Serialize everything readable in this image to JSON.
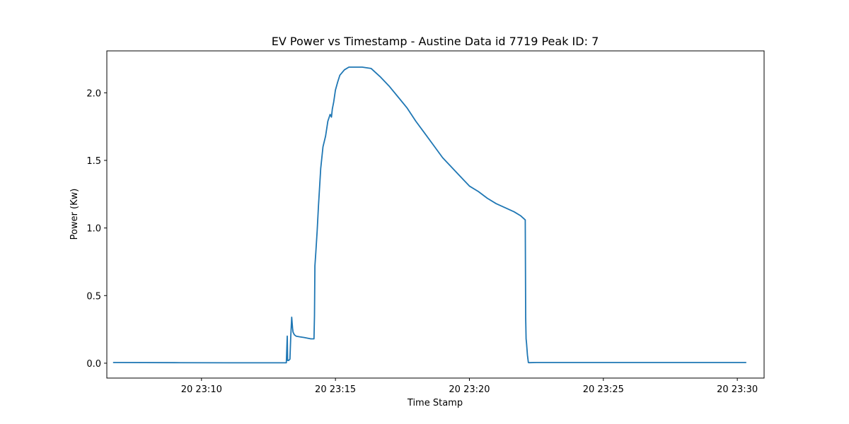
{
  "chart_data": {
    "type": "line",
    "title": "EV Power vs Timestamp - Austine Data id 7719 Peak ID: 7",
    "xlabel": "Time Stamp",
    "ylabel": "Power (Kw)",
    "xlim": [
      "2018-08-20 23:06:28",
      "2018-08-20 23:31:00"
    ],
    "ylim": [
      -0.11,
      2.31
    ],
    "x_ticks": [
      {
        "label": "20 23:10",
        "value": "2018-08-20 23:10:00"
      },
      {
        "label": "20 23:15",
        "value": "2018-08-20 23:15:00"
      },
      {
        "label": "20 23:20",
        "value": "2018-08-20 23:20:00"
      },
      {
        "label": "20 23:25",
        "value": "2018-08-20 23:25:00"
      },
      {
        "label": "20 23:30",
        "value": "2018-08-20 23:30:00"
      }
    ],
    "y_ticks": [
      {
        "label": "0.0",
        "value": 0.0
      },
      {
        "label": "0.5",
        "value": 0.5
      },
      {
        "label": "1.0",
        "value": 1.0
      },
      {
        "label": "1.5",
        "value": 1.5
      },
      {
        "label": "2.0",
        "value": 2.0
      }
    ],
    "grid": false,
    "line_color": "#1f77b4",
    "series": [
      {
        "x": [
          "2018-08-20 23:06:42",
          "2018-08-20 23:09:00",
          "2018-08-20 23:11:00",
          "2018-08-20 23:13:10",
          "2018-08-20 23:13:12",
          "2018-08-20 23:13:13",
          "2018-08-20 23:13:14",
          "2018-08-20 23:13:15",
          "2018-08-20 23:13:18",
          "2018-08-20 23:13:20",
          "2018-08-20 23:13:22",
          "2018-08-20 23:13:23",
          "2018-08-20 23:13:24",
          "2018-08-20 23:13:25",
          "2018-08-20 23:13:28",
          "2018-08-20 23:13:32",
          "2018-08-20 23:13:40",
          "2018-08-20 23:13:50",
          "2018-08-20 23:14:05",
          "2018-08-20 23:14:12",
          "2018-08-20 23:14:13",
          "2018-08-20 23:14:14",
          "2018-08-20 23:14:16",
          "2018-08-20 23:14:19",
          "2018-08-20 23:14:22",
          "2018-08-20 23:14:27",
          "2018-08-20 23:14:32",
          "2018-08-20 23:14:38",
          "2018-08-20 23:14:43",
          "2018-08-20 23:14:48",
          "2018-08-20 23:14:51",
          "2018-08-20 23:14:52",
          "2018-08-20 23:14:53",
          "2018-08-20 23:14:56",
          "2018-08-20 23:15:00",
          "2018-08-20 23:15:05",
          "2018-08-20 23:15:10",
          "2018-08-20 23:15:20",
          "2018-08-20 23:15:30",
          "2018-08-20 23:15:40",
          "2018-08-20 23:16:00",
          "2018-08-20 23:16:20",
          "2018-08-20 23:16:40",
          "2018-08-20 23:17:00",
          "2018-08-20 23:17:20",
          "2018-08-20 23:17:40",
          "2018-08-20 23:18:00",
          "2018-08-20 23:18:20",
          "2018-08-20 23:18:40",
          "2018-08-20 23:19:00",
          "2018-08-20 23:19:20",
          "2018-08-20 23:19:40",
          "2018-08-20 23:20:00",
          "2018-08-20 23:20:20",
          "2018-08-20 23:20:40",
          "2018-08-20 23:21:00",
          "2018-08-20 23:21:20",
          "2018-08-20 23:21:40",
          "2018-08-20 23:21:55",
          "2018-08-20 23:22:05",
          "2018-08-20 23:22:06",
          "2018-08-20 23:22:07",
          "2018-08-20 23:22:08",
          "2018-08-20 23:22:10",
          "2018-08-20 23:22:12",
          "2018-08-20 23:22:13",
          "2018-08-20 23:22:15",
          "2018-08-20 23:22:30",
          "2018-08-20 23:25:00",
          "2018-08-20 23:28:00",
          "2018-08-20 23:30:20"
        ],
        "values": [
          0.005,
          0.004,
          0.003,
          0.003,
          0.2,
          0.02,
          0.02,
          0.02,
          0.03,
          0.2,
          0.34,
          0.3,
          0.26,
          0.23,
          0.21,
          0.2,
          0.195,
          0.19,
          0.18,
          0.18,
          0.35,
          0.72,
          0.82,
          0.98,
          1.16,
          1.44,
          1.6,
          1.68,
          1.79,
          1.84,
          1.82,
          1.85,
          1.88,
          1.93,
          2.02,
          2.08,
          2.13,
          2.17,
          2.19,
          2.19,
          2.19,
          2.18,
          2.12,
          2.05,
          1.97,
          1.89,
          1.79,
          1.7,
          1.61,
          1.52,
          1.45,
          1.38,
          1.31,
          1.27,
          1.22,
          1.18,
          1.15,
          1.12,
          1.09,
          1.06,
          0.34,
          0.18,
          0.15,
          0.06,
          0.005,
          0.004,
          0.004,
          0.005,
          0.005,
          0.005,
          0.005
        ]
      }
    ]
  }
}
